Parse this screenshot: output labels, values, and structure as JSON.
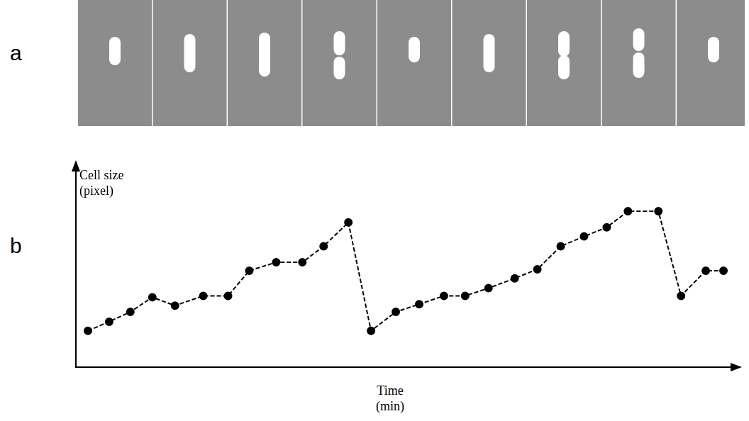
{
  "panel_labels": [
    "a",
    "b"
  ],
  "chart_data": {
    "type": "line",
    "y_label": "Cell size\n(pixel)",
    "x_label": "Time\n(min)",
    "x": [
      17,
      47,
      77,
      108,
      140,
      180,
      215,
      245,
      283,
      320,
      350,
      385,
      417,
      452,
      485,
      520,
      550,
      583,
      620,
      652,
      685,
      718,
      750,
      780,
      823,
      855,
      890,
      915
    ],
    "values": [
      52,
      65,
      79,
      100,
      88,
      102,
      102,
      138,
      150,
      150,
      173,
      207,
      52,
      79,
      90,
      102,
      102,
      113,
      127,
      140,
      173,
      187,
      200,
      223,
      223,
      102,
      138,
      138
    ],
    "xlim": [
      0,
      935
    ],
    "ylim": [
      0,
      290
    ],
    "color": "#000000",
    "marker": "circle",
    "line_style": "dashed",
    "grid": false,
    "tick_labels": false
  }
}
